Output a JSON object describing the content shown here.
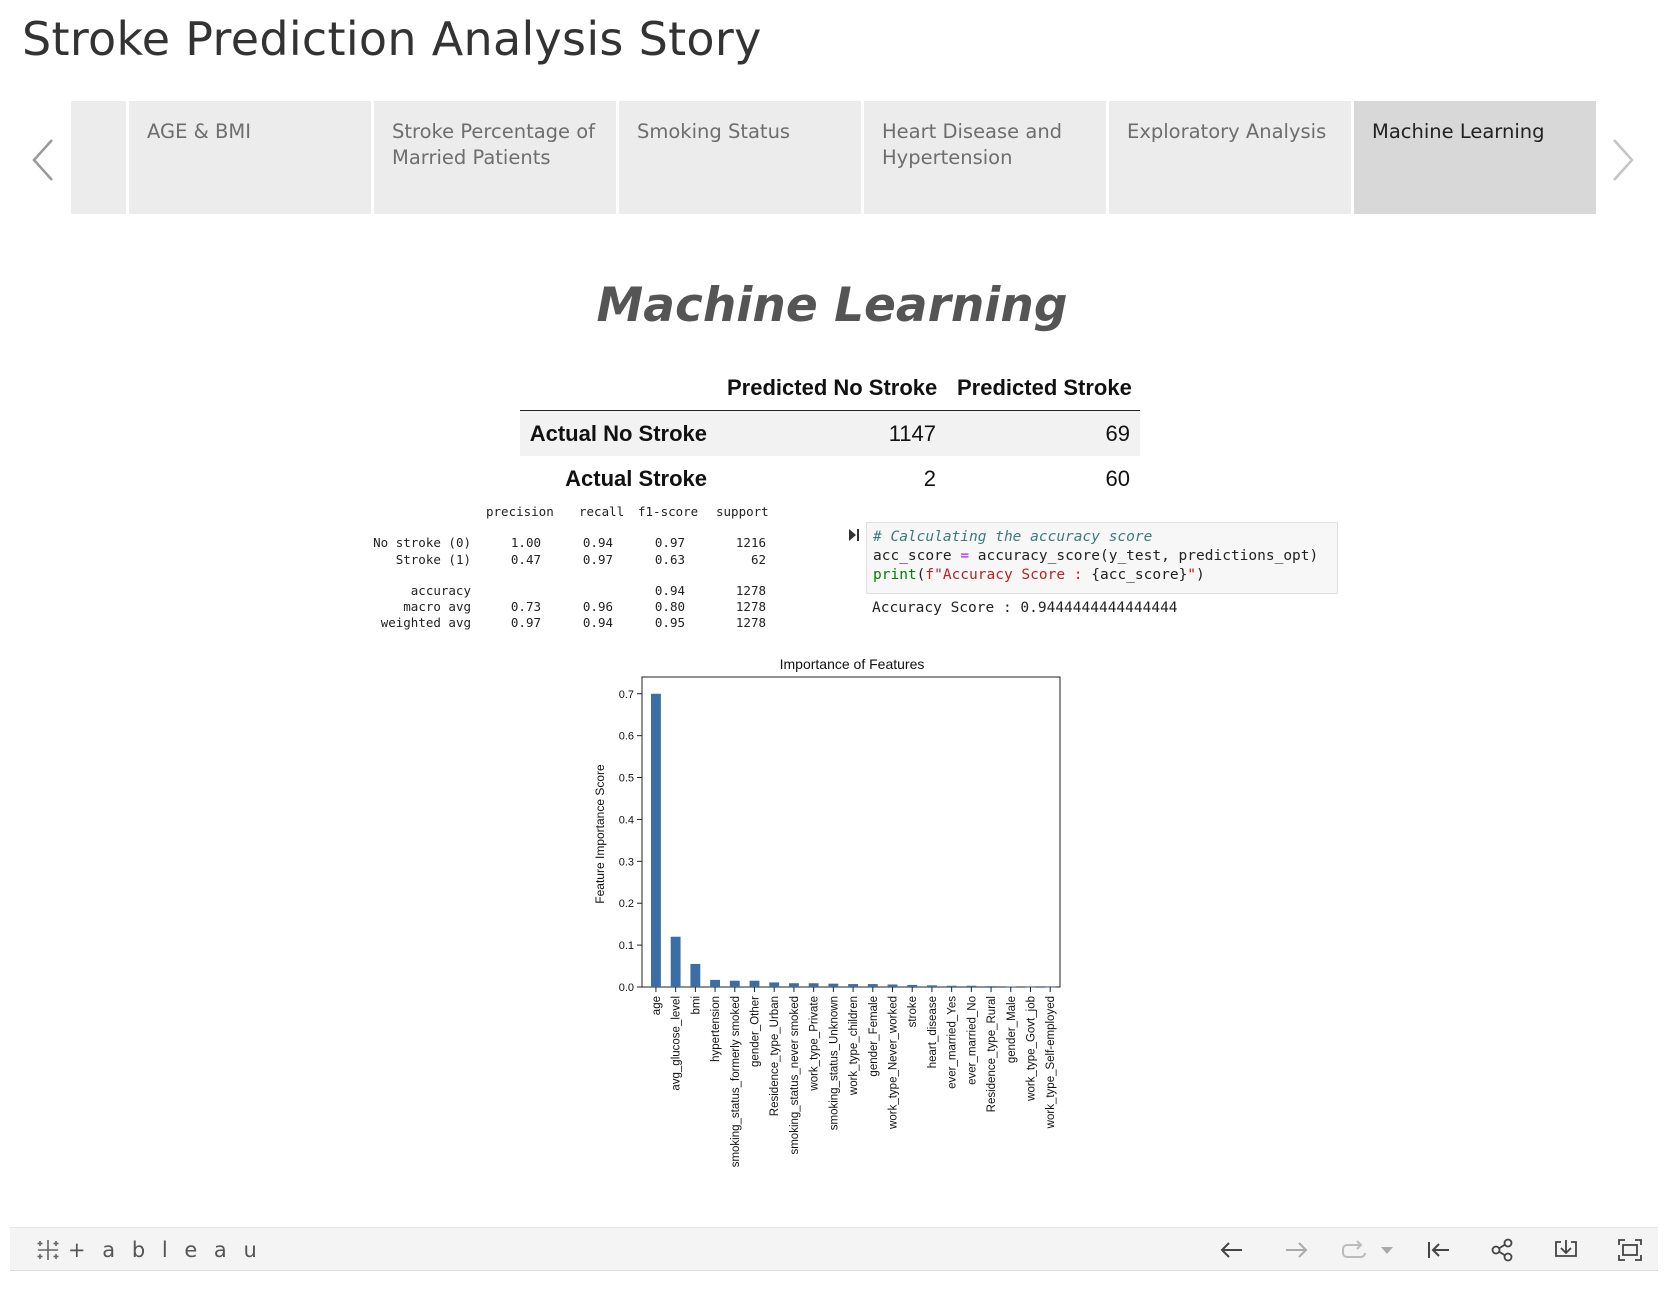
{
  "story": {
    "title": "Stroke Prediction Analysis Story"
  },
  "tabs": [
    {
      "label": ""
    },
    {
      "label": "AGE & BMI"
    },
    {
      "label": "Stroke Percentage of Married Patients"
    },
    {
      "label": "Smoking Status"
    },
    {
      "label": "Heart Disease and Hypertension"
    },
    {
      "label": "Exploratory Analysis"
    },
    {
      "label": "Machine Learning",
      "active": true
    }
  ],
  "page": {
    "heading": "Machine Learning"
  },
  "confusion_matrix": {
    "col_headers": [
      "Predicted No Stroke",
      "Predicted Stroke"
    ],
    "rows": [
      {
        "label": "Actual No Stroke",
        "values": [
          "1147",
          "69"
        ]
      },
      {
        "label": "Actual Stroke",
        "values": [
          "2",
          "60"
        ]
      }
    ]
  },
  "report": {
    "headers": [
      "precision",
      "recall",
      "f1-score",
      "support"
    ],
    "rows": [
      {
        "label": "No stroke (0)",
        "values": [
          "1.00",
          "0.94",
          "0.97",
          "1216"
        ]
      },
      {
        "label": "Stroke (1)",
        "values": [
          "0.47",
          "0.97",
          "0.63",
          "62"
        ]
      },
      {
        "label": "accuracy",
        "values": [
          "",
          "",
          "0.94",
          "1278"
        ]
      },
      {
        "label": "macro avg",
        "values": [
          "0.73",
          "0.96",
          "0.80",
          "1278"
        ]
      },
      {
        "label": "weighted avg",
        "values": [
          "0.97",
          "0.94",
          "0.95",
          "1278"
        ]
      }
    ]
  },
  "code": {
    "comment": "# Calculating the accuracy score",
    "line2_a": "acc_score ",
    "line2_op": "=",
    "line2_b": " accuracy_score(y_test, predictions_opt)",
    "line3_kw": "print",
    "line3_a": "(",
    "line3_str": "f\"Accuracy Score : ",
    "line3_b": "{acc_score}",
    "line3_str2": "\"",
    "line3_c": ")",
    "output": "Accuracy Score : 0.9444444444444444"
  },
  "chart_data": {
    "type": "bar",
    "title": "Importance of Features",
    "xlabel": "",
    "ylabel": "Feature Importance Score",
    "ylim": [
      0,
      0.74
    ],
    "yticks": [
      "0.0",
      "0.1",
      "0.2",
      "0.3",
      "0.4",
      "0.5",
      "0.6",
      "0.7"
    ],
    "bar_color": "#3a6ea5",
    "categories": [
      "age",
      "avg_glucose_level",
      "bmi",
      "hypertension",
      "smoking_status_formerly smoked",
      "gender_Other",
      "Residence_type_Urban",
      "smoking_status_never smoked",
      "work_type_Private",
      "smoking_status_Unknown",
      "work_type_children",
      "gender_Female",
      "work_type_Never_worked",
      "stroke",
      "heart_disease",
      "ever_married_Yes",
      "ever_married_No",
      "Residence_type_Rural",
      "gender_Male",
      "work_type_Govt_job",
      "work_type_Self-employed"
    ],
    "values": [
      0.7,
      0.12,
      0.055,
      0.017,
      0.015,
      0.015,
      0.011,
      0.009,
      0.009,
      0.008,
      0.007,
      0.007,
      0.006,
      0.005,
      0.004,
      0.003,
      0.003,
      0.002,
      0.001,
      0.0005,
      0.0003
    ]
  },
  "toolbar": {
    "logo_text": "+ a b l e a u"
  },
  "colors": {
    "tab_bg": "#ececec",
    "tab_active_bg": "#d8d8d8",
    "toolbar_bg": "#f4f4f4"
  }
}
